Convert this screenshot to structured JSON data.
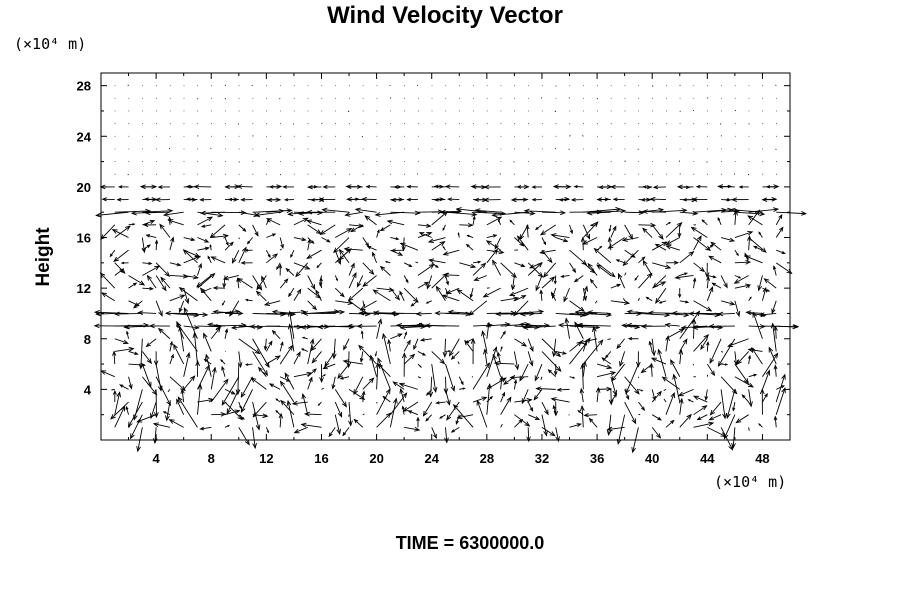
{
  "chart_data": {
    "type": "quiver",
    "title": "Wind Velocity Vector",
    "ylabel": "Height",
    "y_unit": "(×10⁴ m)",
    "x_unit": "(×10⁴ m)",
    "xlim": [
      0,
      50
    ],
    "ylim": [
      0,
      29
    ],
    "x_ticks": [
      4,
      8,
      12,
      16,
      20,
      24,
      28,
      32,
      36,
      40,
      44,
      48
    ],
    "y_ticks": [
      4,
      8,
      12,
      16,
      20,
      24,
      28
    ],
    "x_tick_labels": [
      "4",
      "8",
      "12",
      "16",
      "20",
      "24",
      "28",
      "32",
      "36",
      "40",
      "44",
      "48"
    ],
    "y_tick_labels": [
      "4",
      "8",
      "12",
      "16",
      "20",
      "24",
      "28"
    ],
    "grid": false,
    "footer": "TIME = 6300000.0"
  }
}
